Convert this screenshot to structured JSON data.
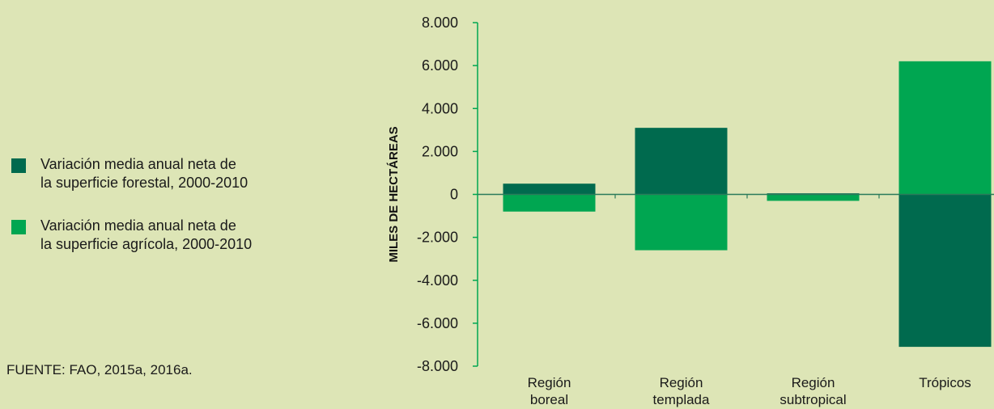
{
  "legend": [
    {
      "line1": "Variación media anual neta de",
      "line2": "la superficie forestal, 2000-2010",
      "color": "#006a4e"
    },
    {
      "line1": "Variación media anual neta de",
      "line2": "la superficie agrícola, 2000-2010",
      "color": "#00a651"
    }
  ],
  "source": "FUENTE: FAO, 2015a, 2016a.",
  "chart_data": {
    "type": "bar",
    "categories": [
      [
        "Región",
        "boreal"
      ],
      [
        "Región",
        "templada"
      ],
      [
        "Región",
        "subtropical"
      ],
      [
        "Trópicos"
      ]
    ],
    "series": [
      {
        "name": "Variación media anual neta de la superficie forestal, 2000-2010",
        "color": "#006a4e",
        "values": [
          500,
          3100,
          50,
          -7100
        ]
      },
      {
        "name": "Variación media anual neta de la superficie agrícola, 2000-2010",
        "color": "#00a651",
        "values": [
          -800,
          -2600,
          -300,
          6200
        ]
      }
    ],
    "ylabel": "MILES DE HECTÁREAS",
    "ylim": [
      -8000,
      8000
    ],
    "yticks": [
      "8.000",
      "6.000",
      "4.000",
      "2.000",
      "0",
      "-2.000",
      "-4.000",
      "-6.000",
      "-8.000"
    ],
    "ytick_values": [
      8000,
      6000,
      4000,
      2000,
      0,
      -2000,
      -4000,
      -6000,
      -8000
    ]
  }
}
